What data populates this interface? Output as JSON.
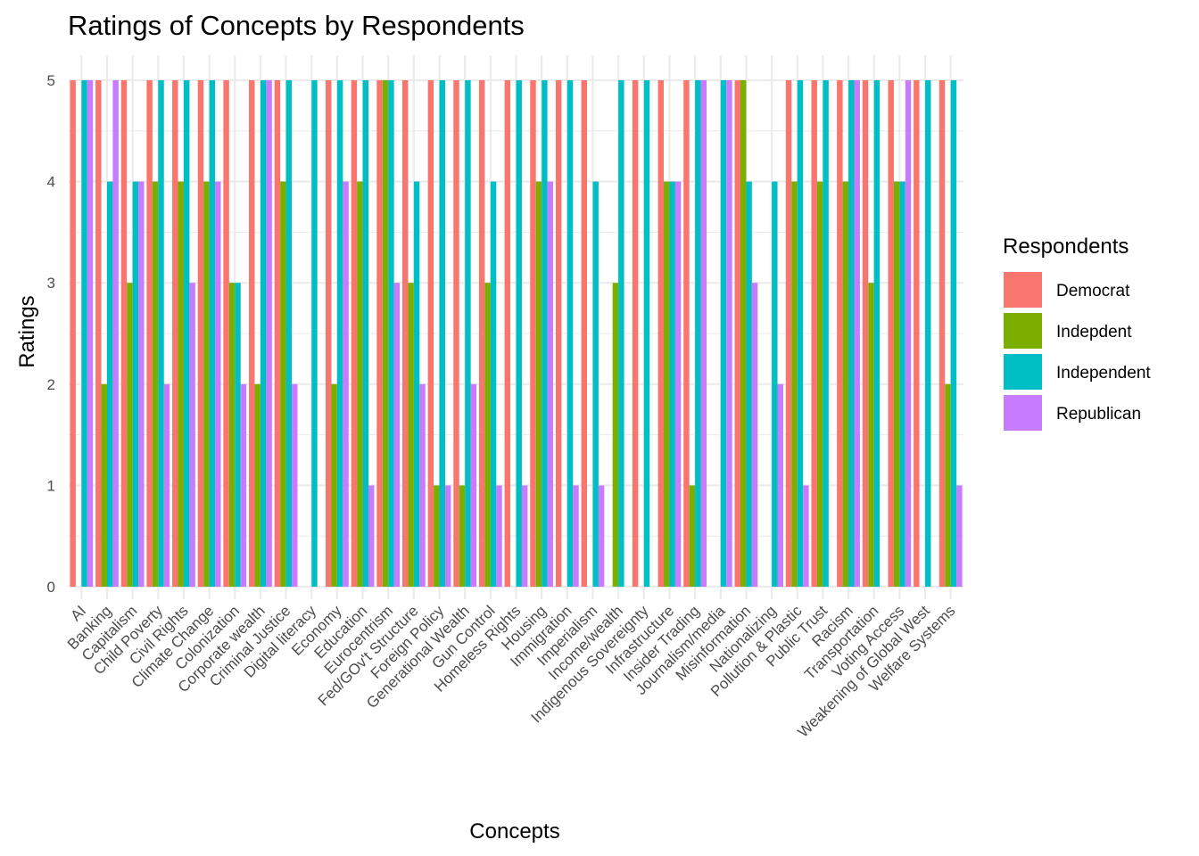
{
  "chart_data": {
    "type": "bar",
    "title": "Ratings of Concepts by Respondents",
    "xlabel": "Concepts",
    "ylabel": "Ratings",
    "ylim": [
      0,
      5
    ],
    "yticks": [
      0,
      1,
      2,
      3,
      4,
      5
    ],
    "grid": true,
    "legend_title": "Respondents",
    "legend_position": "right",
    "categories": [
      "AI",
      "Banking",
      "Capitalism",
      "Child Poverty",
      "Civil Rights",
      "Climate Change",
      "Colonization",
      "Corporate wealth",
      "Criminal Justice",
      "Digital literacy",
      "Economy",
      "Education",
      "Eurocentrism",
      "Fed/GOv't Structure",
      "Foreign Policy",
      "Generational Wealth",
      "Gun Control",
      "Homeless Rights",
      "Housing",
      "Immigration",
      "Imperialism",
      "Income/wealth",
      "Indigenous Sovereignty",
      "Infrastructure",
      "Insider Trading",
      "Journalism/media",
      "Misinformation",
      "Nationalizing",
      "Pollution & Plastic",
      "Public Trust",
      "Racism",
      "Transportation",
      "Voting Access",
      "Weakening of Global West",
      "Welfare Systems"
    ],
    "series": [
      {
        "name": "Democrat",
        "color": "#F8766D",
        "values": [
          5,
          5,
          5,
          5,
          5,
          5,
          5,
          5,
          5,
          null,
          5,
          5,
          5,
          5,
          5,
          5,
          5,
          5,
          5,
          5,
          5,
          null,
          5,
          5,
          5,
          null,
          5,
          null,
          5,
          5,
          5,
          5,
          5,
          5,
          5
        ]
      },
      {
        "name": "Indepdent",
        "color": "#7CAE00",
        "values": [
          null,
          2,
          3,
          4,
          4,
          4,
          3,
          2,
          4,
          null,
          2,
          4,
          5,
          3,
          1,
          1,
          3,
          null,
          4,
          null,
          null,
          3,
          null,
          4,
          1,
          null,
          5,
          null,
          4,
          4,
          4,
          3,
          4,
          null,
          2
        ]
      },
      {
        "name": "Independent",
        "color": "#00BFC4",
        "values": [
          5,
          4,
          4,
          5,
          5,
          5,
          3,
          5,
          5,
          5,
          5,
          5,
          5,
          4,
          5,
          5,
          4,
          5,
          5,
          5,
          4,
          5,
          5,
          4,
          5,
          5,
          4,
          4,
          5,
          5,
          5,
          5,
          4,
          5,
          5
        ]
      },
      {
        "name": "Republican",
        "color": "#C77CFF",
        "values": [
          5,
          5,
          4,
          2,
          3,
          4,
          2,
          5,
          2,
          null,
          4,
          1,
          3,
          2,
          1,
          2,
          1,
          1,
          4,
          1,
          1,
          null,
          null,
          4,
          5,
          5,
          3,
          2,
          1,
          null,
          5,
          null,
          5,
          null,
          1
        ]
      }
    ]
  }
}
